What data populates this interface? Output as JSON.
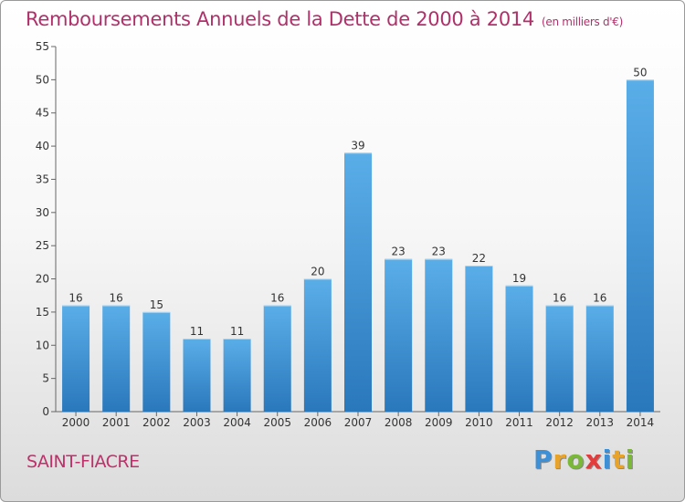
{
  "header": {
    "title": "Remboursements Annuels de la Dette de 2000 à 2014",
    "unit": "(en milliers d'€)"
  },
  "footer": {
    "commune": "SAINT-FIACRE",
    "logo_letters": [
      {
        "char": "P",
        "color": "#3d8fd6"
      },
      {
        "char": "r",
        "color": "#e8a32b"
      },
      {
        "char": "o",
        "color": "#7bb83a"
      },
      {
        "char": "x",
        "color": "#e23c3c"
      },
      {
        "char": "i",
        "color": "#3d8fd6"
      },
      {
        "char": "t",
        "color": "#e8a32b"
      },
      {
        "char": "i",
        "color": "#7bb83a"
      }
    ]
  },
  "colors": {
    "bar_top": "#5aaee8",
    "bar_bottom": "#2a78bc",
    "title": "#b0306a"
  },
  "chart_data": {
    "type": "bar",
    "title": "Remboursements Annuels de la Dette de 2000 à 2014",
    "categories": [
      "2000",
      "2001",
      "2002",
      "2003",
      "2004",
      "2005",
      "2006",
      "2007",
      "2008",
      "2009",
      "2010",
      "2011",
      "2012",
      "2013",
      "2014"
    ],
    "values": [
      16,
      16,
      15,
      11,
      11,
      16,
      20,
      39,
      23,
      23,
      22,
      19,
      16,
      16,
      50
    ],
    "data_labels": [
      "16",
      "16",
      "15",
      "11",
      "11",
      "16",
      "20",
      "39",
      "23",
      "23",
      "22",
      "19",
      "16",
      "16",
      "50"
    ],
    "yticks": [
      "0",
      "5",
      "10",
      "15",
      "20",
      "25",
      "30",
      "35",
      "40",
      "45",
      "50",
      "55"
    ],
    "ylim": [
      0,
      55
    ],
    "grid": false,
    "legend": "none"
  }
}
